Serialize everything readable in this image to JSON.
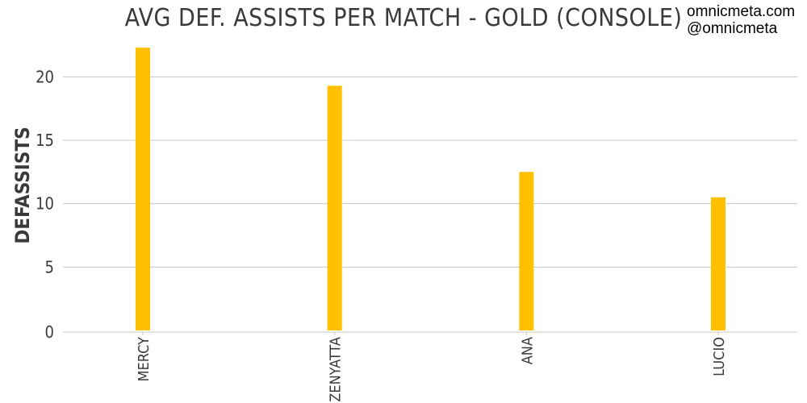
{
  "watermark": {
    "site": "omnicmeta.com",
    "handle": "@omnicmeta"
  },
  "chart_data": {
    "type": "bar",
    "title": "AVG DEF. ASSISTS PER MATCH - GOLD (CONSOLE)",
    "xlabel": "",
    "ylabel": "DEFASSISTS",
    "categories": [
      "MERCY",
      "ZENYATTA",
      "ANA",
      "LUCIO"
    ],
    "values": [
      22.3,
      19.3,
      12.5,
      10.5
    ],
    "ylim": [
      0,
      22.5
    ],
    "yticks": [
      0,
      5,
      10,
      15,
      20
    ],
    "grid": true,
    "bar_color": "#FFC000",
    "grid_color": "#c8c8c8",
    "text_color": "#3a3a3a"
  }
}
